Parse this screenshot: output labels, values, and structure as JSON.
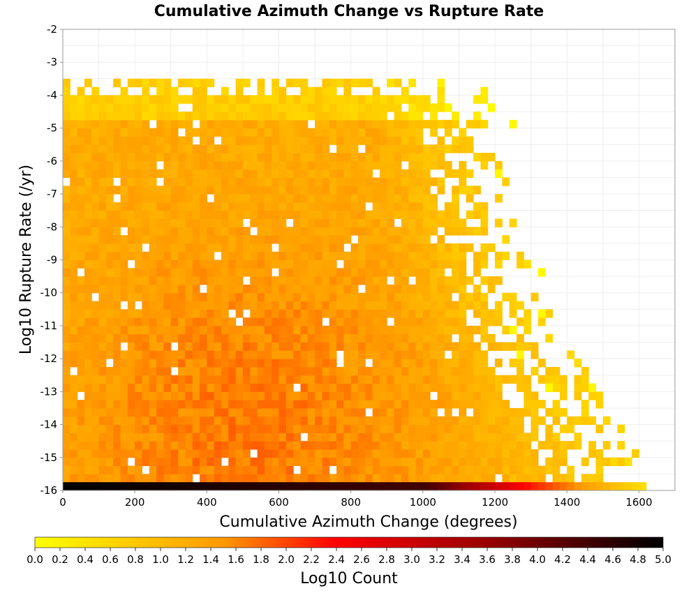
{
  "chart_data": {
    "type": "heatmap",
    "title": "Cumulative Azimuth Change vs Rupture Rate",
    "xlabel": "Cumulative Azimuth Change (degrees)",
    "ylabel": "Log10 Rupture Rate (/yr)",
    "xlim": [
      0,
      1700
    ],
    "ylim": [
      -16,
      -2
    ],
    "x_ticks": [
      "0",
      "200",
      "400",
      "600",
      "800",
      "1000",
      "1200",
      "1400",
      "1600"
    ],
    "y_ticks": [
      "-2",
      "-3",
      "-4",
      "-5",
      "-6",
      "-7",
      "-8",
      "-9",
      "-10",
      "-11",
      "-12",
      "-13",
      "-14",
      "-15",
      "-16"
    ],
    "grid": true,
    "bin_width_x": 20,
    "bin_height_y": 0.25,
    "colorbar": {
      "label": "Log10 Count",
      "range": [
        0,
        5
      ],
      "position": "bottom",
      "tick_labels": [
        "0.0",
        "0.2",
        "0.4",
        "0.6",
        "0.8",
        "1.0",
        "1.2",
        "1.4",
        "1.6",
        "1.8",
        "2.0",
        "2.2",
        "2.4",
        "2.6",
        "2.8",
        "3.0",
        "3.2",
        "3.4",
        "3.6",
        "3.8",
        "4.0",
        "4.2",
        "4.4",
        "4.6",
        "4.8",
        "5.0"
      ],
      "colors": [
        "#ffff00",
        "#ff9900",
        "#ff0000",
        "#990000",
        "#000000"
      ]
    },
    "baseline_row": {
      "y": -16,
      "x_extent": [
        0,
        1620
      ],
      "log10_count_at_x0": 5.0,
      "log10_count_at_x1000": 4.4,
      "log10_count_at_x1300": 2.2,
      "log10_count_at_x1620": 0.4
    },
    "density_summary": {
      "occupied_x_extent_by_row": [
        {
          "y": -4,
          "x_max": 1180
        },
        {
          "y": -10,
          "x_max": 1300
        },
        {
          "y": -13,
          "x_max": 1470
        }
      ],
      "peak_log10_count_region": {
        "x": [
          400,
          600
        ],
        "y": [
          -16,
          -13
        ],
        "value": 1.7
      },
      "typical_log10_count": 1.2
    }
  }
}
